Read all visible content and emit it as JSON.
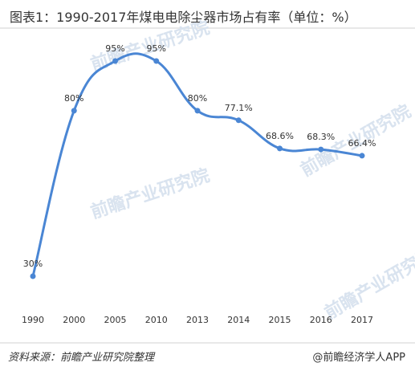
{
  "header": {
    "title": "图表1：1990-2017年煤电电除尘器市场占有率（单位：%）"
  },
  "footer": {
    "source": "资料来源：前瞻产业研究院整理",
    "brand": "@前瞻经济学人APP"
  },
  "watermark": {
    "text": "前瞻产业研究院"
  },
  "colors": {
    "line": "#4a86d4",
    "point": "#4a86d4",
    "text": "#333333"
  },
  "chart_data": {
    "type": "line",
    "title": "图表1：1990-2017年煤电电除尘器市场占有率（单位：%）",
    "xlabel": "",
    "ylabel": "",
    "categories": [
      "1990",
      "2000",
      "2005",
      "2010",
      "2013",
      "2014",
      "2015",
      "2016",
      "2017"
    ],
    "values": [
      30,
      80,
      95,
      95,
      80,
      77.1,
      68.6,
      68.3,
      66.4
    ],
    "data_labels": [
      "30%",
      "80%",
      "95%",
      "95%",
      "80%",
      "77.1%",
      "68.6%",
      "68.3%",
      "66.4%"
    ],
    "ylim": [
      30,
      95
    ],
    "grid": false,
    "smooth": true
  }
}
